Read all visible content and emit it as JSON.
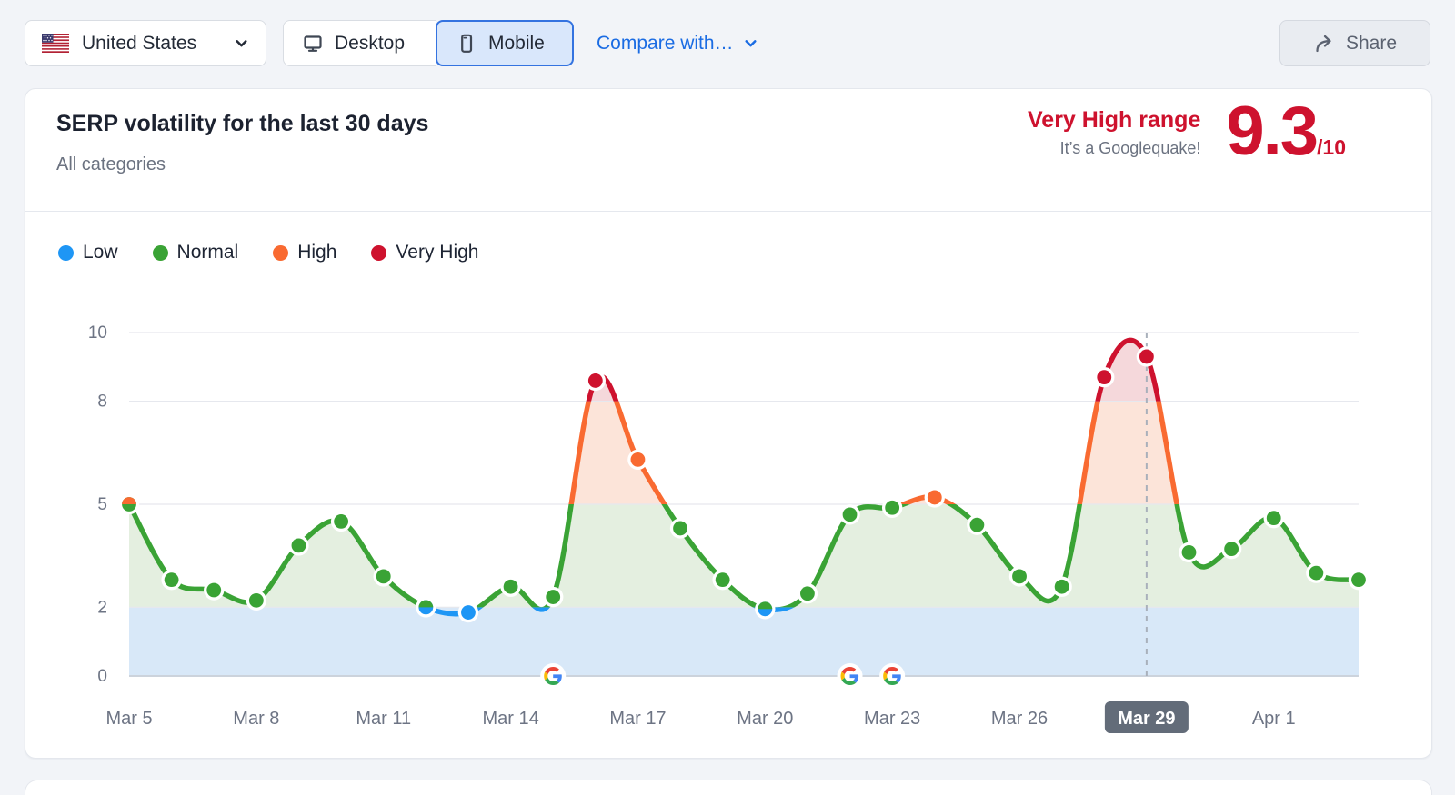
{
  "toolbar": {
    "country": "United States",
    "desktop_label": "Desktop",
    "mobile_label": "Mobile",
    "compare_label": "Compare with…",
    "share_label": "Share"
  },
  "header": {
    "title": "SERP volatility for the last 30 days",
    "subtitle": "All categories",
    "range_label": "Very High range",
    "range_sublabel": "It’s a Googlequake!",
    "score": "9.3",
    "score_suffix": "/10"
  },
  "legend": {
    "items": [
      {
        "label": "Low",
        "color": "#1e96f5"
      },
      {
        "label": "Normal",
        "color": "#3aa335"
      },
      {
        "label": "High",
        "color": "#f96a31"
      },
      {
        "label": "Very High",
        "color": "#ce122e"
      }
    ]
  },
  "chart_data": {
    "type": "line",
    "title": "SERP volatility for the last 30 days",
    "x": [
      "Mar 5",
      "Mar 6",
      "Mar 7",
      "Mar 8",
      "Mar 9",
      "Mar 10",
      "Mar 11",
      "Mar 12",
      "Mar 13",
      "Mar 14",
      "Mar 15",
      "Mar 16",
      "Mar 17",
      "Mar 18",
      "Mar 19",
      "Mar 20",
      "Mar 21",
      "Mar 22",
      "Mar 23",
      "Mar 24",
      "Mar 25",
      "Mar 26",
      "Mar 27",
      "Mar 28",
      "Mar 29",
      "Mar 30",
      "Mar 31",
      "Apr 1",
      "Apr 2",
      "Apr 3"
    ],
    "values": [
      5.0,
      2.8,
      2.5,
      2.2,
      3.8,
      4.5,
      2.9,
      2.0,
      1.85,
      2.6,
      2.3,
      8.6,
      6.3,
      4.3,
      2.8,
      1.95,
      2.4,
      4.7,
      4.9,
      5.2,
      4.4,
      2.9,
      2.6,
      8.7,
      9.3,
      3.6,
      3.7,
      4.6,
      3.0,
      2.8
    ],
    "ylim": [
      0,
      10
    ],
    "y_ticks": [
      0,
      2,
      5,
      8,
      10
    ],
    "x_tick_days": [
      0,
      3,
      6,
      9,
      12,
      15,
      18,
      21,
      24,
      27
    ],
    "x_tick_labels": [
      "Mar 5",
      "Mar 8",
      "Mar 11",
      "Mar 14",
      "Mar 17",
      "Mar 20",
      "Mar 23",
      "Mar 26",
      "Mar 29",
      "Apr 1"
    ],
    "selected_day": 24,
    "selected_label": "Mar 29",
    "google_update_days": [
      10,
      17,
      18
    ],
    "bands": {
      "low": [
        0,
        2
      ],
      "normal": [
        2,
        5
      ],
      "high": [
        5,
        8
      ],
      "very_high": [
        8,
        10
      ]
    },
    "legend_position": "top-left",
    "grid": true,
    "colors": {
      "low": "#1e96f5",
      "normal": "#3aa335",
      "high": "#f96a31",
      "very_high": "#ce122e",
      "fill_low": "#d8e8f8",
      "fill_normal": "#e4efe0",
      "fill_high": "#fce4d9",
      "fill_very_high": "#f5d8db",
      "grid": "#e6e8ee",
      "grid_axis": "#ccd3dc",
      "axis_text": "#6d7484",
      "selected_line": "#a9b0bb",
      "selected_badge_bg": "#636c79",
      "selected_badge_text": "#ffffff"
    }
  }
}
